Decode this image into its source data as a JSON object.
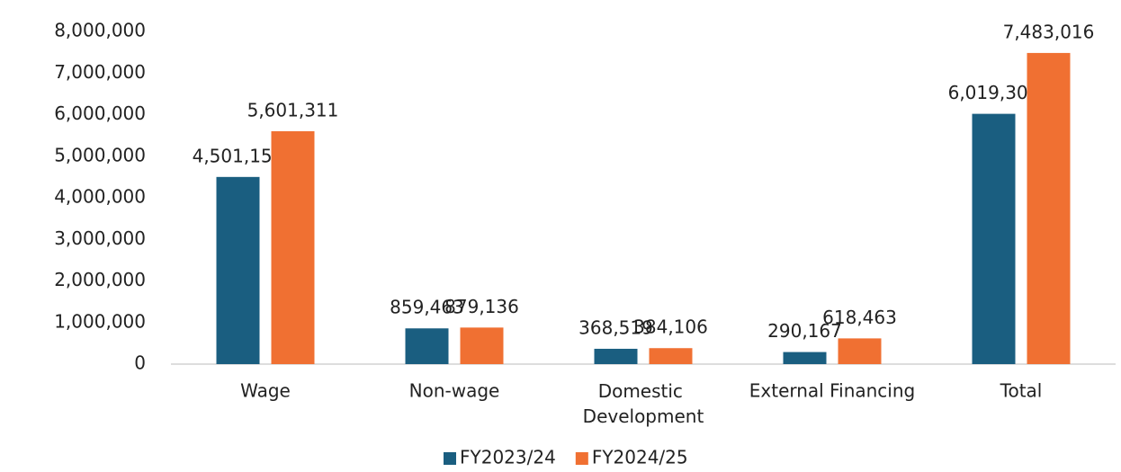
{
  "chart_data": {
    "type": "bar",
    "categories": [
      "Wage",
      "Non-wage",
      "Domestic Development",
      "External Financing",
      "Total"
    ],
    "series": [
      {
        "name": "FY2023/24",
        "color": "#1a5e80",
        "values": [
          4501157,
          859463,
          368519,
          290167,
          6019306
        ],
        "value_labels": [
          "4,501,157",
          "859,463",
          "368,519",
          "290,167",
          "6,019,306"
        ]
      },
      {
        "name": "FY2024/25",
        "color": "#f07032",
        "values": [
          5601311,
          879136,
          384106,
          618463,
          7483016
        ],
        "value_labels": [
          "5,601,311",
          "879,136",
          "384,106",
          "618,463",
          "7,483,016"
        ]
      }
    ],
    "ylim": [
      0,
      8000000
    ],
    "yticks": [
      0,
      {
        "value": 1000000,
        "label": "1,000,000"
      },
      {
        "value": 2000000,
        "label": "2,000,000"
      },
      {
        "value": 3000000,
        "label": "3,000,000"
      },
      {
        "value": 4000000,
        "label": "4,000,000"
      },
      {
        "value": 5000000,
        "label": "5,000,000"
      },
      {
        "value": 6000000,
        "label": "6,000,000"
      },
      {
        "value": 7000000,
        "label": "7,000,000"
      },
      {
        "value": 8000000,
        "label": "8,000,000"
      }
    ],
    "grid": false,
    "legend": "bottom"
  }
}
